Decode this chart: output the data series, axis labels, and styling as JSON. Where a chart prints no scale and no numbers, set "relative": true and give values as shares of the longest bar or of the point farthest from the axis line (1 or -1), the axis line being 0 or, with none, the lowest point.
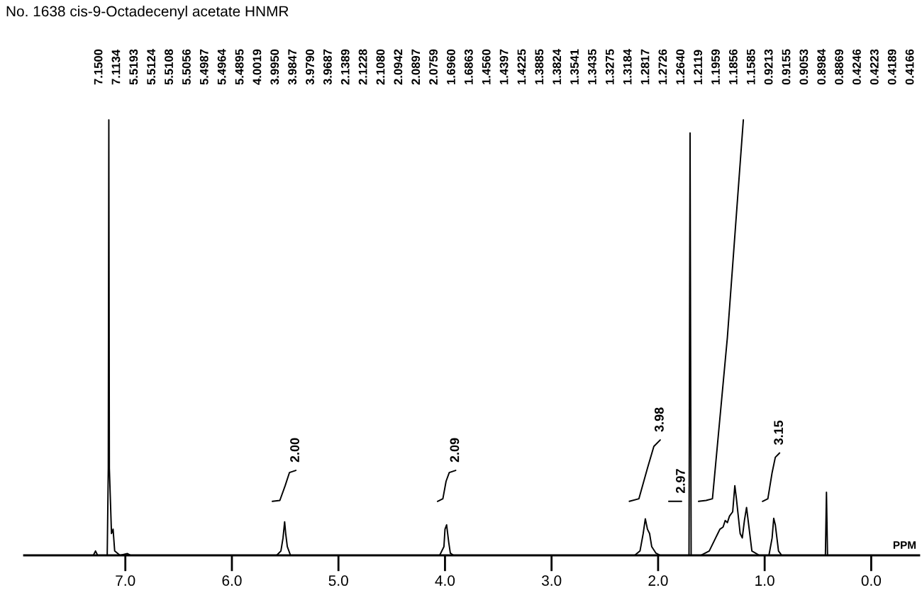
{
  "chart_data": {
    "type": "line",
    "title": "No. 1638 cis-9-Octadecenyl acetate HNMR",
    "xlabel": "PPM",
    "relative": true,
    "xlim": [
      7.95,
      -0.45
    ],
    "xticks": [
      {
        "value": 7,
        "label": "7.0"
      },
      {
        "value": 6,
        "label": "6.0"
      },
      {
        "value": 5,
        "label": "5.0"
      },
      {
        "value": 4,
        "label": "4.0"
      },
      {
        "value": 3,
        "label": "3.0"
      },
      {
        "value": 2,
        "label": "2.0"
      },
      {
        "value": 1,
        "label": "1.0"
      },
      {
        "value": 0,
        "label": "0.0"
      }
    ],
    "marker": "none",
    "line_style": "solid",
    "series": [
      {
        "color": "#000000",
        "x": [
          7.95,
          7.3,
          7.28,
          7.26,
          7.17,
          7.16,
          7.155,
          7.15,
          7.13,
          7.115,
          7.1,
          7.05,
          6.98,
          6.95,
          5.58,
          5.54,
          5.52,
          5.505,
          5.495,
          5.48,
          5.45,
          4.05,
          4.01,
          4.0,
          3.985,
          3.975,
          3.965,
          3.95,
          3.92,
          2.22,
          2.17,
          2.14,
          2.12,
          2.1,
          2.08,
          2.06,
          2.02,
          1.98,
          1.71,
          1.7,
          1.69,
          1.6,
          1.52,
          1.46,
          1.44,
          1.42,
          1.39,
          1.37,
          1.35,
          1.33,
          1.3,
          1.28,
          1.265,
          1.23,
          1.21,
          1.19,
          1.17,
          1.15,
          1.12,
          1.05,
          0.96,
          0.93,
          0.915,
          0.9,
          0.89,
          0.87,
          0.84,
          0.43,
          0.42,
          0.41,
          -0.45
        ],
        "values": [
          0,
          0,
          0.01,
          0,
          0,
          0.2,
          1.0,
          0.2,
          0.05,
          0.06,
          0.01,
          0,
          0.004,
          0,
          0,
          0.01,
          0.04,
          0.077,
          0.05,
          0.02,
          0,
          0,
          0.02,
          0.06,
          0.07,
          0.05,
          0.03,
          0.005,
          0,
          0,
          0.01,
          0.05,
          0.084,
          0.06,
          0.05,
          0.02,
          0.005,
          0,
          0,
          0.97,
          0,
          0,
          0.01,
          0.04,
          0.05,
          0.06,
          0.065,
          0.08,
          0.075,
          0.09,
          0.1,
          0.16,
          0.13,
          0.05,
          0.04,
          0.08,
          0.11,
          0.07,
          0.01,
          0,
          0,
          0.04,
          0.085,
          0.07,
          0.05,
          0.01,
          0,
          0,
          0.145,
          0,
          0
        ]
      },
      {
        "type": "line",
        "color": "#000000",
        "x": [
          5.62,
          5.55,
          5.5,
          5.46,
          5.4,
          null,
          4.07,
          4.02,
          3.99,
          3.96,
          3.9,
          null,
          2.27,
          2.18,
          2.1,
          2.04,
          1.98,
          null,
          1.9,
          1.78,
          null,
          1.02,
          0.97,
          0.93,
          0.9,
          0.86
        ],
        "values": [
          0.124,
          0.126,
          0.16,
          0.19,
          0.195,
          null,
          0.124,
          0.13,
          0.17,
          0.19,
          0.195,
          null,
          0.124,
          0.13,
          0.2,
          0.25,
          0.265,
          null,
          0.124,
          0.124,
          null,
          0.124,
          0.13,
          0.19,
          0.225,
          0.235
        ]
      },
      {
        "type": "line",
        "color": "#000000",
        "x": [
          1.62,
          1.55,
          1.49,
          1.35,
          1.26,
          1.2
        ],
        "values": [
          0.124,
          0.126,
          0.13,
          0.5,
          0.8,
          1.0
        ]
      }
    ],
    "annotations": [
      "2.00",
      "2.09",
      "3.98",
      "2.97",
      "3.15",
      "7.1500",
      "7.1134",
      "5.5193",
      "5.5124",
      "5.5108",
      "5.5056",
      "5.4987",
      "5.4964",
      "5.4895",
      "4.0019",
      "3.9950",
      "3.9847",
      "3.9790",
      "3.9687",
      "2.1389",
      "2.1228",
      "2.1080",
      "2.0942",
      "2.0897",
      "2.0759",
      "1.6960",
      "1.6863",
      "1.4560",
      "1.4397",
      "1.4225",
      "1.3885",
      "1.3824",
      "1.3541",
      "1.3435",
      "1.3275",
      "1.3184",
      "1.2817",
      "1.2726",
      "1.2640",
      "1.2119",
      "1.1959",
      "1.1856",
      "1.1585",
      "0.9213",
      "0.9155",
      "0.9053",
      "0.8984",
      "0.8869",
      "0.4246",
      "0.4223",
      "0.4189",
      "0.4166"
    ]
  }
}
